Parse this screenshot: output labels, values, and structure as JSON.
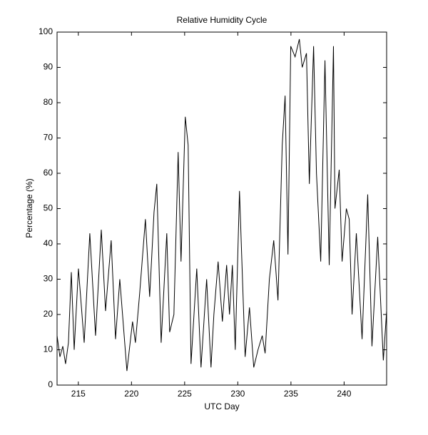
{
  "chart_data": {
    "type": "line",
    "title": "Relative Humidity Cycle",
    "x_label": "UTC Day",
    "y_label": "Percentage (%)",
    "xlim": [
      213,
      244
    ],
    "ylim": [
      0,
      100
    ],
    "xticks": [
      215,
      220,
      225,
      230,
      235,
      240
    ],
    "yticks": [
      0,
      10,
      20,
      30,
      40,
      50,
      60,
      70,
      80,
      90,
      100
    ],
    "grid": false,
    "series": [
      {
        "name": "Relative Humidity",
        "color": "#000000",
        "x": [
          213.0,
          213.27,
          213.54,
          213.8,
          214.07,
          214.34,
          214.61,
          215.01,
          215.55,
          216.08,
          216.62,
          217.16,
          217.56,
          218.09,
          218.5,
          218.9,
          219.57,
          220.1,
          220.37,
          220.77,
          221.31,
          221.71,
          222.12,
          222.38,
          222.79,
          223.32,
          223.59,
          223.99,
          224.39,
          224.66,
          225.06,
          225.33,
          225.6,
          226.14,
          226.54,
          227.07,
          227.48,
          227.75,
          228.15,
          228.55,
          228.95,
          229.22,
          229.49,
          229.76,
          230.16,
          230.69,
          231.1,
          231.5,
          231.9,
          232.3,
          232.57,
          232.97,
          233.38,
          233.78,
          234.18,
          234.45,
          234.72,
          234.98,
          235.39,
          235.79,
          236.06,
          236.46,
          236.73,
          237.13,
          237.4,
          237.8,
          238.2,
          238.6,
          239.0,
          239.14,
          239.54,
          239.81,
          240.21,
          240.48,
          240.75,
          241.15,
          241.69,
          242.22,
          242.62,
          243.16,
          243.69,
          244.0
        ],
        "values": [
          14,
          8,
          11,
          6,
          12,
          32,
          10,
          33,
          12,
          43,
          14,
          44,
          21,
          41,
          13,
          30,
          4,
          18,
          12,
          26,
          47,
          25,
          49,
          57,
          12,
          43,
          15,
          20,
          66,
          35,
          76,
          68,
          6,
          33,
          5,
          30,
          5,
          20,
          35,
          18,
          34,
          20,
          34,
          10,
          55,
          8,
          22,
          5,
          10,
          14,
          9,
          30,
          41,
          24,
          68,
          82,
          37,
          96,
          93,
          98,
          90,
          94,
          57,
          96,
          60,
          35,
          92,
          34,
          96,
          50,
          61,
          35,
          50,
          47,
          20,
          43,
          13,
          54,
          11,
          42,
          7,
          21
        ]
      }
    ]
  }
}
